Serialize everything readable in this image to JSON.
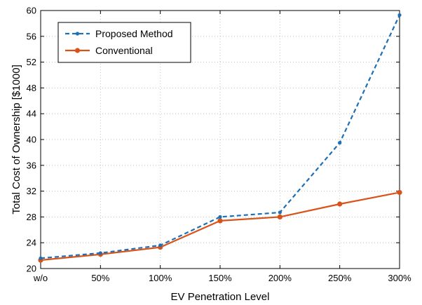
{
  "chart_data": {
    "type": "line",
    "title": "",
    "xlabel": "EV Penetration Level",
    "ylabel": "Total Cost of Ownership [$1000]",
    "categories": [
      "w/o",
      "50%",
      "100%",
      "150%",
      "200%",
      "250%",
      "300%"
    ],
    "ylim": [
      20,
      60
    ],
    "yticks": [
      20,
      24,
      28,
      32,
      36,
      40,
      44,
      48,
      52,
      56,
      60
    ],
    "grid": true,
    "legend_position": "top-left",
    "series": [
      {
        "name": "Proposed Method",
        "values": [
          21.6,
          22.4,
          23.6,
          28.0,
          28.7,
          39.5,
          59.3
        ],
        "color": "#1f6fb4",
        "line_style": "dashed",
        "marker": "dot"
      },
      {
        "name": "Conventional",
        "values": [
          21.3,
          22.2,
          23.3,
          27.4,
          28.0,
          30.0,
          31.8
        ],
        "color": "#d95319",
        "line_style": "solid",
        "marker": "dot"
      }
    ]
  }
}
